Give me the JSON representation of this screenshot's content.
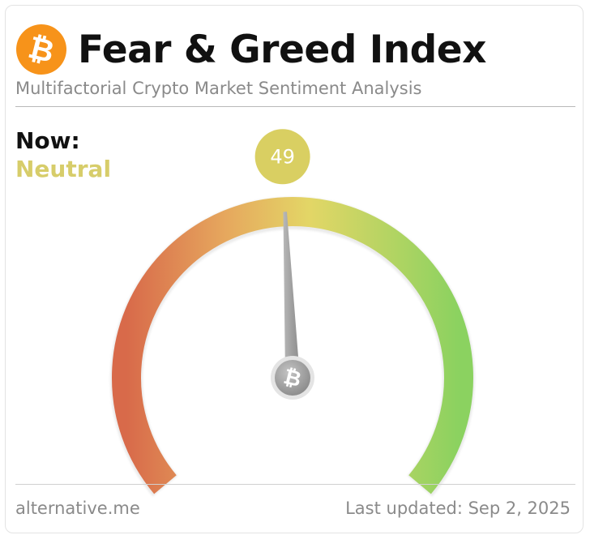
{
  "header": {
    "logo_icon": "bitcoin-icon",
    "logo_glyph": "₿",
    "title": "Fear & Greed Index",
    "subtitle": "Multifactorial Crypto Market Sentiment Analysis"
  },
  "status": {
    "now_label": "Now:",
    "classification": "Neutral",
    "classification_color": "#d7cd6a"
  },
  "gauge": {
    "value": 49,
    "value_text": "49",
    "min": 0,
    "max": 100,
    "badge_color": "#d9cf62",
    "gradient_colors": [
      "#d86a4a",
      "#e6a85e",
      "#e3d666",
      "#8bd260"
    ],
    "needle_color": "#9a9a9a",
    "hub_icon": "bitcoin-icon",
    "hub_glyph": "₿"
  },
  "footer": {
    "source": "alternative.me",
    "last_updated": "Last updated: Sep 2, 2025"
  }
}
